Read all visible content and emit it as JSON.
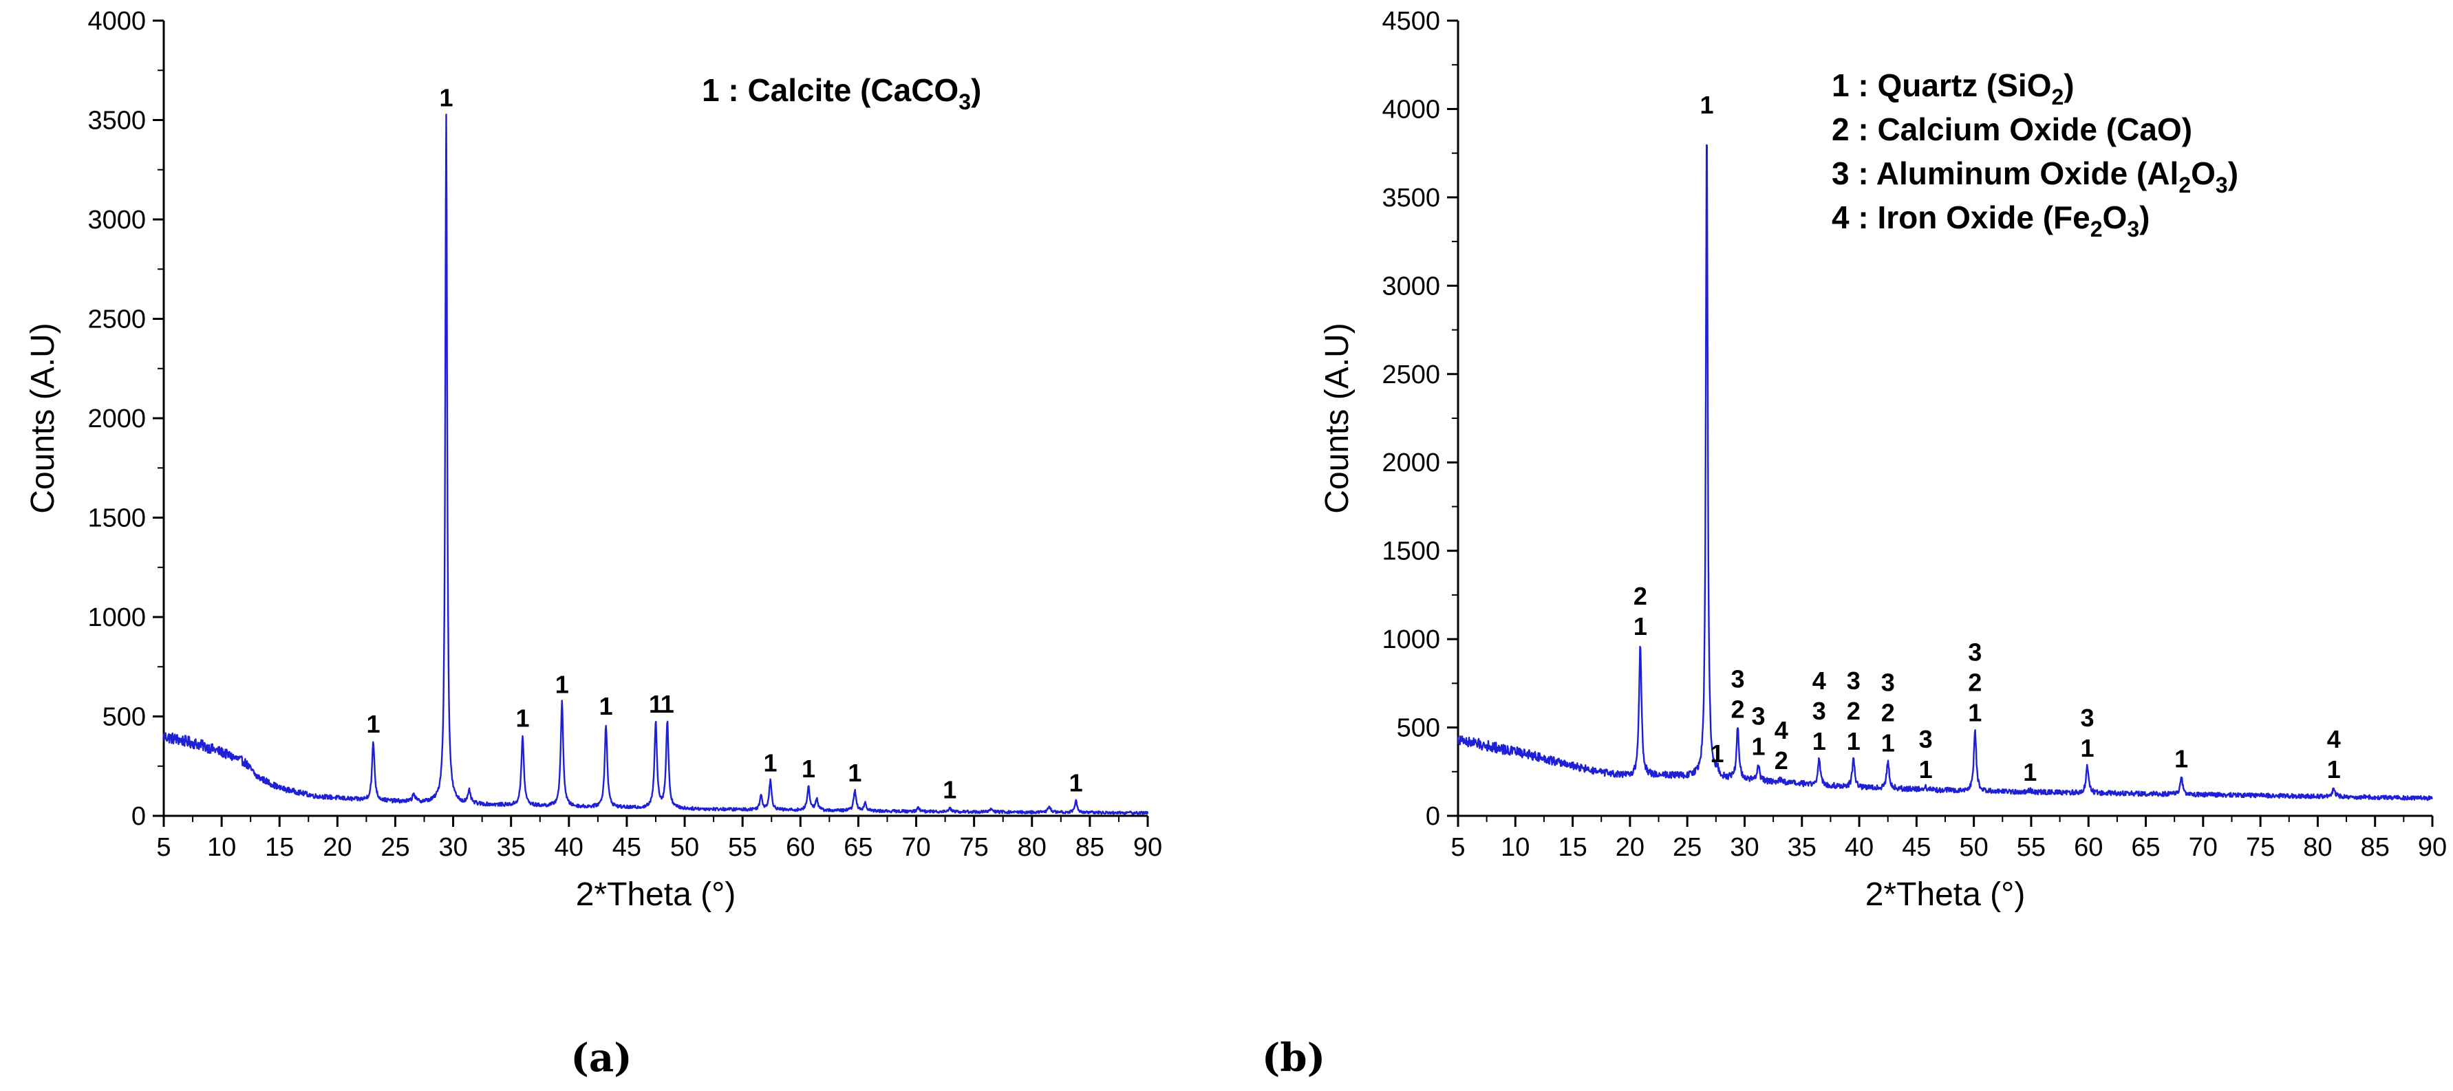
{
  "chart_data": [
    {
      "type": "line",
      "panel_label": "a",
      "xlabel": "2*Theta (°)",
      "ylabel": "Counts (A.U)",
      "xlim": [
        5,
        90
      ],
      "ylim": [
        0,
        4000
      ],
      "x_ticks": [
        5,
        10,
        15,
        20,
        25,
        30,
        35,
        40,
        45,
        50,
        55,
        60,
        65,
        70,
        75,
        80,
        85,
        90
      ],
      "y_ticks": [
        0,
        500,
        1000,
        1500,
        2000,
        2500,
        3000,
        3500,
        4000
      ],
      "line_color": "#1f1fd6",
      "legend": [
        {
          "num": "1",
          "sep": " : ",
          "name": "Calcite (CaCO",
          "sub": "3",
          "tail": ")"
        }
      ],
      "baseline": [
        [
          5,
          400
        ],
        [
          8,
          360
        ],
        [
          10,
          320
        ],
        [
          12,
          270
        ],
        [
          13,
          200
        ],
        [
          15,
          140
        ],
        [
          18,
          100
        ],
        [
          22,
          80
        ],
        [
          26,
          70
        ],
        [
          30,
          60
        ],
        [
          40,
          45
        ],
        [
          50,
          35
        ],
        [
          60,
          28
        ],
        [
          70,
          22
        ],
        [
          80,
          18
        ],
        [
          90,
          15
        ]
      ],
      "peaks": [
        {
          "x": 23.1,
          "y": 370,
          "label": "1"
        },
        {
          "x": 26.6,
          "y": 110,
          "label": ""
        },
        {
          "x": 29.4,
          "y": 3520,
          "label": "1"
        },
        {
          "x": 31.4,
          "y": 120,
          "label": ""
        },
        {
          "x": 36.0,
          "y": 400,
          "label": "1"
        },
        {
          "x": 39.4,
          "y": 570,
          "label": "1"
        },
        {
          "x": 43.2,
          "y": 460,
          "label": "1"
        },
        {
          "x": 47.5,
          "y": 470,
          "label": "1"
        },
        {
          "x": 48.5,
          "y": 470,
          "label": "1"
        },
        {
          "x": 56.6,
          "y": 100,
          "label": ""
        },
        {
          "x": 57.4,
          "y": 175,
          "label": "1"
        },
        {
          "x": 60.7,
          "y": 145,
          "label": "1"
        },
        {
          "x": 61.4,
          "y": 85,
          "label": ""
        },
        {
          "x": 64.7,
          "y": 125,
          "label": "1"
        },
        {
          "x": 65.6,
          "y": 65,
          "label": ""
        },
        {
          "x": 70.2,
          "y": 40,
          "label": ""
        },
        {
          "x": 72.9,
          "y": 40,
          "label": "1"
        },
        {
          "x": 76.5,
          "y": 35,
          "label": ""
        },
        {
          "x": 81.5,
          "y": 50,
          "label": ""
        },
        {
          "x": 83.8,
          "y": 75,
          "label": "1"
        }
      ]
    },
    {
      "type": "line",
      "panel_label": "b",
      "xlabel": "2*Theta (°)",
      "ylabel": "Counts (A.U)",
      "xlim": [
        5,
        90
      ],
      "ylim": [
        0,
        4500
      ],
      "x_ticks": [
        5,
        10,
        15,
        20,
        25,
        30,
        35,
        40,
        45,
        50,
        55,
        60,
        65,
        70,
        75,
        80,
        85,
        90
      ],
      "y_ticks": [
        0,
        500,
        1000,
        1500,
        2000,
        2500,
        3000,
        3500,
        4000,
        4500
      ],
      "line_color": "#1f1fd6",
      "legend": [
        {
          "num": "1",
          "sep": " : ",
          "name": "Quartz (SiO",
          "sub": "2",
          "tail": ")"
        },
        {
          "num": "2",
          "sep": " : ",
          "name": "Calcium Oxide (CaO)",
          "sub": "",
          "tail": ""
        },
        {
          "num": "3",
          "sep": " : ",
          "name": "Aluminum Oxide (Al",
          "sub": "2",
          "tail": "O",
          "sub2": "3",
          "tail2": ")"
        },
        {
          "num": "4",
          "sep": " : ",
          "name": "Iron Oxide (Fe",
          "sub": "2",
          "tail": "O",
          "sub2": "3",
          "tail2": ")"
        }
      ],
      "baseline": [
        [
          5,
          430
        ],
        [
          8,
          390
        ],
        [
          11,
          350
        ],
        [
          14,
          300
        ],
        [
          17,
          250
        ],
        [
          20,
          220
        ],
        [
          23,
          230
        ],
        [
          25,
          220
        ],
        [
          30,
          200
        ],
        [
          35,
          180
        ],
        [
          40,
          160
        ],
        [
          50,
          140
        ],
        [
          60,
          130
        ],
        [
          70,
          120
        ],
        [
          80,
          110
        ],
        [
          90,
          100
        ]
      ],
      "peaks": [
        {
          "x": 20.9,
          "y": 970,
          "label": "1\n2"
        },
        {
          "x": 26.7,
          "y": 3920,
          "label": "1"
        },
        {
          "x": 27.6,
          "y": 250,
          "label": "1"
        },
        {
          "x": 29.4,
          "y": 500,
          "label": "2\n3"
        },
        {
          "x": 31.2,
          "y": 290,
          "label": "1\n3"
        },
        {
          "x": 33.2,
          "y": 210,
          "label": "2\n4"
        },
        {
          "x": 36.5,
          "y": 320,
          "label": "1\n3\n4"
        },
        {
          "x": 39.5,
          "y": 320,
          "label": "1\n2\n3"
        },
        {
          "x": 42.5,
          "y": 310,
          "label": "1\n2\n3"
        },
        {
          "x": 45.8,
          "y": 160,
          "label": "1\n3"
        },
        {
          "x": 50.1,
          "y": 480,
          "label": "1\n2\n3"
        },
        {
          "x": 54.9,
          "y": 145,
          "label": "1"
        },
        {
          "x": 59.9,
          "y": 280,
          "label": "1\n3"
        },
        {
          "x": 68.1,
          "y": 220,
          "label": "1"
        },
        {
          "x": 81.4,
          "y": 160,
          "label": "1\n4"
        }
      ]
    }
  ],
  "captions": {
    "a": "(a)",
    "b": "(b)"
  }
}
